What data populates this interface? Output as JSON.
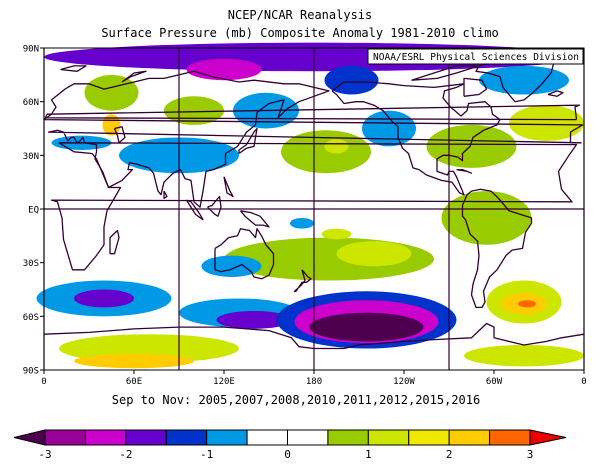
{
  "title": "NCEP/NCAR Reanalysis",
  "subtitle": "Surface Pressure (mb) Composite Anomaly 1981-2010 climo",
  "credit": "NOAA/ESRL Physical Sciences Division",
  "period": "Sep to Nov: 2005,2007,2008,2010,2011,2012,2015,2016",
  "lat_ticks": [
    "90N",
    "60N",
    "30N",
    "EQ",
    "30S",
    "60S",
    "90S"
  ],
  "lon_ticks": [
    "0",
    "60E",
    "120E",
    "180",
    "120W",
    "60W",
    "0"
  ],
  "colorbar": {
    "labels": [
      "-3",
      "-2",
      "-1",
      "0",
      "1",
      "2",
      "3"
    ],
    "bins": [
      {
        "lo": -3.0,
        "hi": -2.5,
        "color": "#990099"
      },
      {
        "lo": -2.5,
        "hi": -2.0,
        "color": "#cc00cc"
      },
      {
        "lo": -2.0,
        "hi": -1.5,
        "color": "#6600cc"
      },
      {
        "lo": -1.5,
        "hi": -1.0,
        "color": "#0033cc"
      },
      {
        "lo": -1.0,
        "hi": -0.5,
        "color": "#0099e6"
      },
      {
        "lo": -0.5,
        "hi": 0.0,
        "color": "#ffffff"
      },
      {
        "lo": 0.0,
        "hi": 0.5,
        "color": "#ffffff"
      },
      {
        "lo": 0.5,
        "hi": 1.0,
        "color": "#99cc00"
      },
      {
        "lo": 1.0,
        "hi": 1.5,
        "color": "#cce600"
      },
      {
        "lo": 1.5,
        "hi": 2.0,
        "color": "#f0e800"
      },
      {
        "lo": 2.0,
        "hi": 2.5,
        "color": "#ffcc00"
      },
      {
        "lo": 2.5,
        "hi": 3.0,
        "color": "#ff6600"
      }
    ],
    "under_color": "#4d004d",
    "over_color": "#ee0000"
  },
  "map": {
    "grid_lons": [
      0,
      90,
      180,
      270,
      360
    ],
    "grid_lats": [
      0
    ],
    "ocean_color": "#ffffff",
    "coast_color": "#330033",
    "grid_color": "#330033",
    "anomaly_features": [
      {
        "lon": 180,
        "lat": 85,
        "rx": 180,
        "ry": 8,
        "value": -1.6
      },
      {
        "lon": 120,
        "lat": 78,
        "rx": 25,
        "ry": 6,
        "value": -2.2
      },
      {
        "lon": 205,
        "lat": 72,
        "rx": 18,
        "ry": 8,
        "value": -1.2
      },
      {
        "lon": 45,
        "lat": 65,
        "rx": 18,
        "ry": 10,
        "value": 0.8
      },
      {
        "lon": 45,
        "lat": 47,
        "rx": 6,
        "ry": 6,
        "value": 2.1
      },
      {
        "lon": 100,
        "lat": 55,
        "rx": 20,
        "ry": 8,
        "value": 0.7
      },
      {
        "lon": 25,
        "lat": 37,
        "rx": 20,
        "ry": 4,
        "value": -0.7
      },
      {
        "lon": 90,
        "lat": 30,
        "rx": 40,
        "ry": 10,
        "value": -0.7
      },
      {
        "lon": 148,
        "lat": 55,
        "rx": 22,
        "ry": 10,
        "value": -0.8
      },
      {
        "lon": 188,
        "lat": 32,
        "rx": 30,
        "ry": 12,
        "value": 0.8
      },
      {
        "lon": 195,
        "lat": 35,
        "rx": 8,
        "ry": 4,
        "value": 1.2
      },
      {
        "lon": 230,
        "lat": 45,
        "rx": 18,
        "ry": 10,
        "value": -0.7
      },
      {
        "lon": 285,
        "lat": 35,
        "rx": 30,
        "ry": 12,
        "value": 0.8
      },
      {
        "lon": 335,
        "lat": 48,
        "rx": 25,
        "ry": 10,
        "value": 1.4
      },
      {
        "lon": 320,
        "lat": 72,
        "rx": 30,
        "ry": 8,
        "value": -1.0
      },
      {
        "lon": 190,
        "lat": -28,
        "rx": 70,
        "ry": 12,
        "value": 0.7
      },
      {
        "lon": 220,
        "lat": -25,
        "rx": 25,
        "ry": 7,
        "value": 1.0
      },
      {
        "lon": 195,
        "lat": -14,
        "rx": 10,
        "ry": 3,
        "value": 1.3
      },
      {
        "lon": 172,
        "lat": -8,
        "rx": 8,
        "ry": 3,
        "value": -0.7
      },
      {
        "lon": 295,
        "lat": -5,
        "rx": 30,
        "ry": 15,
        "value": 0.7
      },
      {
        "lon": 125,
        "lat": -32,
        "rx": 20,
        "ry": 6,
        "value": -0.7
      },
      {
        "lon": 40,
        "lat": -50,
        "rx": 45,
        "ry": 10,
        "value": -1.0
      },
      {
        "lon": 40,
        "lat": -50,
        "rx": 20,
        "ry": 5,
        "value": -1.8
      },
      {
        "lon": 130,
        "lat": -58,
        "rx": 40,
        "ry": 8,
        "value": -1.0
      },
      {
        "lon": 140,
        "lat": -62,
        "rx": 25,
        "ry": 5,
        "value": -1.7
      },
      {
        "lon": 215,
        "lat": -62,
        "rx": 60,
        "ry": 16,
        "value": -1.3
      },
      {
        "lon": 215,
        "lat": -63,
        "rx": 48,
        "ry": 12,
        "value": -2.3
      },
      {
        "lon": 215,
        "lat": -66,
        "rx": 38,
        "ry": 8,
        "value": -3.1
      },
      {
        "lon": 320,
        "lat": -52,
        "rx": 25,
        "ry": 12,
        "value": 1.0
      },
      {
        "lon": 320,
        "lat": -53,
        "rx": 15,
        "ry": 6,
        "value": 2.2
      },
      {
        "lon": 322,
        "lat": -53,
        "rx": 6,
        "ry": 2,
        "value": 2.7
      },
      {
        "lon": 70,
        "lat": -78,
        "rx": 60,
        "ry": 8,
        "value": 1.2
      },
      {
        "lon": 60,
        "lat": -85,
        "rx": 40,
        "ry": 4,
        "value": 2.3
      },
      {
        "lon": 320,
        "lat": -82,
        "rx": 40,
        "ry": 6,
        "value": 1.2
      }
    ]
  }
}
